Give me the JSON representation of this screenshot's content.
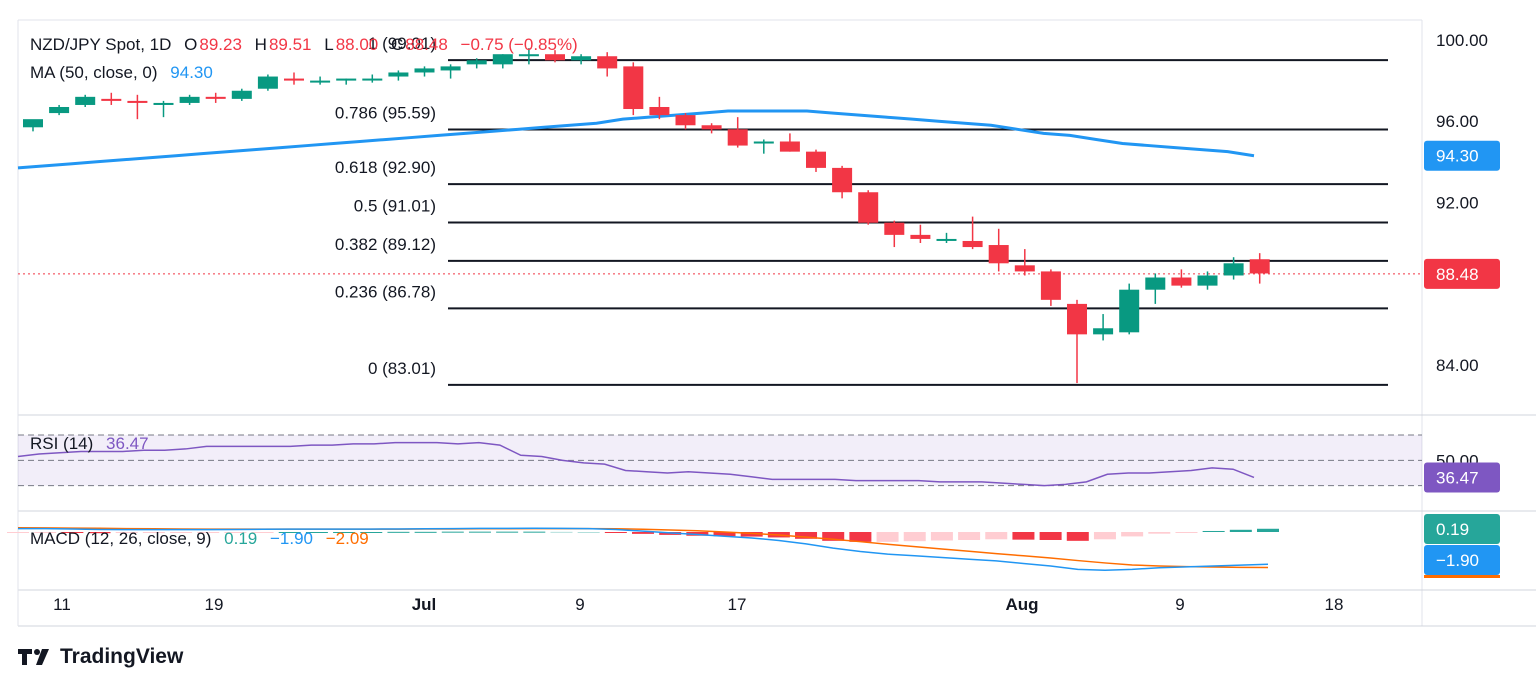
{
  "header": {
    "symbol": "NZD/JPY Spot, 1D",
    "o_label": "O",
    "o_value": "89.23",
    "h_label": "H",
    "h_value": "89.51",
    "l_label": "L",
    "l_value": "88.00",
    "c_label": "C",
    "c_value": "88.48",
    "change": "−0.75 (−0.85%)",
    "ma_label": "MA (50, close, 0)",
    "ma_value": "94.30",
    "rsi_label": "RSI (14)",
    "rsi_value": "36.47",
    "macd_label": "MACD (12, 26, close, 9)",
    "macd_hist": "0.19",
    "macd_line": "−1.90",
    "macd_signal": "−2.09"
  },
  "brand": {
    "name": "TradingView",
    "icon": "tradingview-logo-icon"
  },
  "colors": {
    "up": "#089981",
    "down": "#f23645",
    "ma": "#2196f3",
    "rsi": "#7e57c2",
    "macd": "#2196f3",
    "signal": "#ff6d00",
    "hist_up": "#26a69a",
    "hist_down_light": "#ffcdd2"
  },
  "chart_data": [
    {
      "type": "candlestick",
      "title": "NZD/JPY Spot, 1D",
      "x_ticks": [
        "11",
        "19",
        "Jul",
        "9",
        "17",
        "Aug",
        "9",
        "18"
      ],
      "y_ticks": [
        "100.00",
        "96.00",
        "92.00",
        "84.00"
      ],
      "ylim": [
        81.5,
        101.5
      ],
      "last_price": "88.48",
      "ma_last": "94.30",
      "candles": [
        {
          "o": 95.7,
          "h": 96.0,
          "l": 95.5,
          "c": 96.1
        },
        {
          "o": 96.4,
          "h": 96.8,
          "l": 96.3,
          "c": 96.7
        },
        {
          "o": 96.8,
          "h": 97.3,
          "l": 96.7,
          "c": 97.2
        },
        {
          "o": 97.1,
          "h": 97.4,
          "l": 96.8,
          "c": 97.0
        },
        {
          "o": 97.0,
          "h": 97.3,
          "l": 96.1,
          "c": 96.9
        },
        {
          "o": 96.8,
          "h": 97.0,
          "l": 96.2,
          "c": 96.9
        },
        {
          "o": 96.9,
          "h": 97.3,
          "l": 96.8,
          "c": 97.2
        },
        {
          "o": 97.2,
          "h": 97.4,
          "l": 96.9,
          "c": 97.1
        },
        {
          "o": 97.1,
          "h": 97.6,
          "l": 97.0,
          "c": 97.5
        },
        {
          "o": 97.6,
          "h": 98.3,
          "l": 97.5,
          "c": 98.2
        },
        {
          "o": 98.1,
          "h": 98.4,
          "l": 97.8,
          "c": 98.0
        },
        {
          "o": 98.0,
          "h": 98.2,
          "l": 97.8,
          "c": 98.0
        },
        {
          "o": 98.0,
          "h": 98.1,
          "l": 97.8,
          "c": 98.1
        },
        {
          "o": 98.1,
          "h": 98.3,
          "l": 97.9,
          "c": 98.1
        },
        {
          "o": 98.2,
          "h": 98.5,
          "l": 98.0,
          "c": 98.4
        },
        {
          "o": 98.4,
          "h": 98.7,
          "l": 98.2,
          "c": 98.6
        },
        {
          "o": 98.5,
          "h": 98.8,
          "l": 98.1,
          "c": 98.7
        },
        {
          "o": 98.8,
          "h": 99.1,
          "l": 98.6,
          "c": 99.0
        },
        {
          "o": 98.8,
          "h": 99.3,
          "l": 98.6,
          "c": 99.3
        },
        {
          "o": 99.2,
          "h": 99.6,
          "l": 98.8,
          "c": 99.3
        },
        {
          "o": 99.3,
          "h": 99.5,
          "l": 98.9,
          "c": 99.0
        },
        {
          "o": 99.0,
          "h": 99.3,
          "l": 98.8,
          "c": 99.2
        },
        {
          "o": 99.2,
          "h": 99.4,
          "l": 98.2,
          "c": 98.6
        },
        {
          "o": 98.7,
          "h": 98.9,
          "l": 96.3,
          "c": 96.6
        },
        {
          "o": 96.7,
          "h": 97.2,
          "l": 96.1,
          "c": 96.3
        },
        {
          "o": 96.3,
          "h": 96.4,
          "l": 95.6,
          "c": 95.8
        },
        {
          "o": 95.8,
          "h": 95.9,
          "l": 95.4,
          "c": 95.6
        },
        {
          "o": 95.6,
          "h": 96.2,
          "l": 94.7,
          "c": 94.8
        },
        {
          "o": 94.9,
          "h": 95.1,
          "l": 94.4,
          "c": 95.0
        },
        {
          "o": 95.0,
          "h": 95.4,
          "l": 94.5,
          "c": 94.5
        },
        {
          "o": 94.5,
          "h": 94.6,
          "l": 93.5,
          "c": 93.7
        },
        {
          "o": 93.7,
          "h": 93.8,
          "l": 92.2,
          "c": 92.5
        },
        {
          "o": 92.5,
          "h": 92.6,
          "l": 90.9,
          "c": 91.0
        },
        {
          "o": 91.0,
          "h": 91.1,
          "l": 89.8,
          "c": 90.4
        },
        {
          "o": 90.4,
          "h": 90.9,
          "l": 90.0,
          "c": 90.2
        },
        {
          "o": 90.2,
          "h": 90.5,
          "l": 90.0,
          "c": 90.2
        },
        {
          "o": 90.1,
          "h": 91.3,
          "l": 89.7,
          "c": 89.8
        },
        {
          "o": 89.9,
          "h": 90.7,
          "l": 88.6,
          "c": 89.0
        },
        {
          "o": 88.9,
          "h": 89.7,
          "l": 88.4,
          "c": 88.6
        },
        {
          "o": 88.6,
          "h": 88.7,
          "l": 86.9,
          "c": 87.2
        },
        {
          "o": 87.0,
          "h": 87.2,
          "l": 83.1,
          "c": 85.5
        },
        {
          "o": 85.5,
          "h": 86.5,
          "l": 85.2,
          "c": 85.8
        },
        {
          "o": 85.6,
          "h": 88.0,
          "l": 85.5,
          "c": 87.7
        },
        {
          "o": 87.7,
          "h": 88.5,
          "l": 87.0,
          "c": 88.3
        },
        {
          "o": 88.3,
          "h": 88.7,
          "l": 87.8,
          "c": 87.9
        },
        {
          "o": 87.9,
          "h": 88.6,
          "l": 87.7,
          "c": 88.4
        },
        {
          "o": 88.4,
          "h": 89.3,
          "l": 88.2,
          "c": 89.0
        },
        {
          "o": 89.2,
          "h": 89.5,
          "l": 88.0,
          "c": 88.5
        }
      ],
      "ma_series": [
        93.7,
        93.8,
        93.9,
        94.0,
        94.1,
        94.2,
        94.3,
        94.4,
        94.5,
        94.6,
        94.7,
        94.8,
        94.9,
        95.0,
        95.1,
        95.2,
        95.3,
        95.4,
        95.5,
        95.6,
        95.7,
        95.8,
        95.9,
        96.1,
        96.2,
        96.3,
        96.4,
        96.5,
        96.5,
        96.5,
        96.5,
        96.4,
        96.3,
        96.2,
        96.1,
        96.0,
        95.9,
        95.8,
        95.6,
        95.4,
        95.3,
        95.1,
        94.9,
        94.8,
        94.7,
        94.6,
        94.5,
        94.3
      ],
      "fibonacci": [
        {
          "label": "1 (99.01)",
          "value": 99.01
        },
        {
          "label": "0.786 (95.59)",
          "value": 95.59
        },
        {
          "label": "0.618 (92.90)",
          "value": 92.9
        },
        {
          "label": "0.5 (91.01)",
          "value": 91.01
        },
        {
          "label": "0.382 (89.12)",
          "value": 89.12
        },
        {
          "label": "0.236 (86.78)",
          "value": 86.78
        },
        {
          "label": "0 (83.01)",
          "value": 83.01
        }
      ]
    },
    {
      "type": "line",
      "title": "RSI (14)",
      "y_ticks": [
        "50.00"
      ],
      "band": [
        30,
        70
      ],
      "ylim": [
        10,
        85
      ],
      "last_value": "36.47",
      "values": [
        53,
        55,
        56,
        57,
        57,
        57,
        58,
        58,
        59,
        61,
        61,
        61,
        61,
        61,
        62,
        62,
        63,
        63,
        64,
        64,
        64,
        63,
        64,
        62,
        54,
        53,
        50,
        48,
        47,
        42,
        41,
        40,
        41,
        40,
        39,
        37,
        35,
        35,
        35,
        35,
        34,
        34,
        34,
        34,
        33,
        33,
        33,
        32,
        31,
        30,
        31,
        33,
        39,
        40,
        40,
        41,
        42,
        44,
        43,
        36.5
      ]
    },
    {
      "type": "line",
      "title": "MACD (12, 26, close, 9)",
      "ylim": [
        -2.5,
        0.5
      ],
      "macd_last": "−1.90",
      "signal_last": "−2.09",
      "hist_last": "0.19",
      "macd": [
        0.2,
        0.2,
        0.18,
        0.15,
        0.14,
        0.14,
        0.14,
        0.14,
        0.15,
        0.16,
        0.17,
        0.17,
        0.17,
        0.17,
        0.18,
        0.19,
        0.2,
        0.21,
        0.21,
        0.22,
        0.21,
        0.2,
        0.15,
        0.05,
        -0.05,
        -0.15,
        -0.25,
        -0.35,
        -0.5,
        -0.7,
        -0.95,
        -1.15,
        -1.3,
        -1.4,
        -1.5,
        -1.6,
        -1.7,
        -1.85,
        -2.0,
        -2.2,
        -2.25,
        -2.2,
        -2.1,
        -2.05,
        -2.0,
        -1.95,
        -1.9
      ],
      "signal": [
        0.25,
        0.24,
        0.23,
        0.22,
        0.2,
        0.19,
        0.18,
        0.17,
        0.17,
        0.17,
        0.17,
        0.17,
        0.17,
        0.17,
        0.17,
        0.18,
        0.18,
        0.19,
        0.19,
        0.2,
        0.2,
        0.2,
        0.19,
        0.16,
        0.12,
        0.07,
        0.0,
        -0.08,
        -0.18,
        -0.3,
        -0.43,
        -0.57,
        -0.72,
        -0.86,
        -1.0,
        -1.13,
        -1.27,
        -1.4,
        -1.53,
        -1.68,
        -1.82,
        -1.94,
        -2.0,
        -2.04,
        -2.06,
        -2.08,
        -2.09
      ],
      "histogram": [
        -0.05,
        -0.04,
        -0.05,
        -0.07,
        -0.06,
        -0.05,
        -0.04,
        -0.03,
        -0.02,
        -0.01,
        0.0,
        0.0,
        0.0,
        0.0,
        0.01,
        0.01,
        0.02,
        0.02,
        0.02,
        0.02,
        0.01,
        0.0,
        -0.04,
        -0.11,
        -0.17,
        -0.22,
        -0.25,
        -0.27,
        -0.32,
        -0.4,
        -0.52,
        -0.58,
        -0.58,
        -0.54,
        -0.5,
        -0.47,
        -0.43,
        -0.45,
        -0.47,
        -0.52,
        -0.43,
        -0.26,
        -0.1,
        -0.01,
        0.06,
        0.13,
        0.19
      ]
    }
  ]
}
